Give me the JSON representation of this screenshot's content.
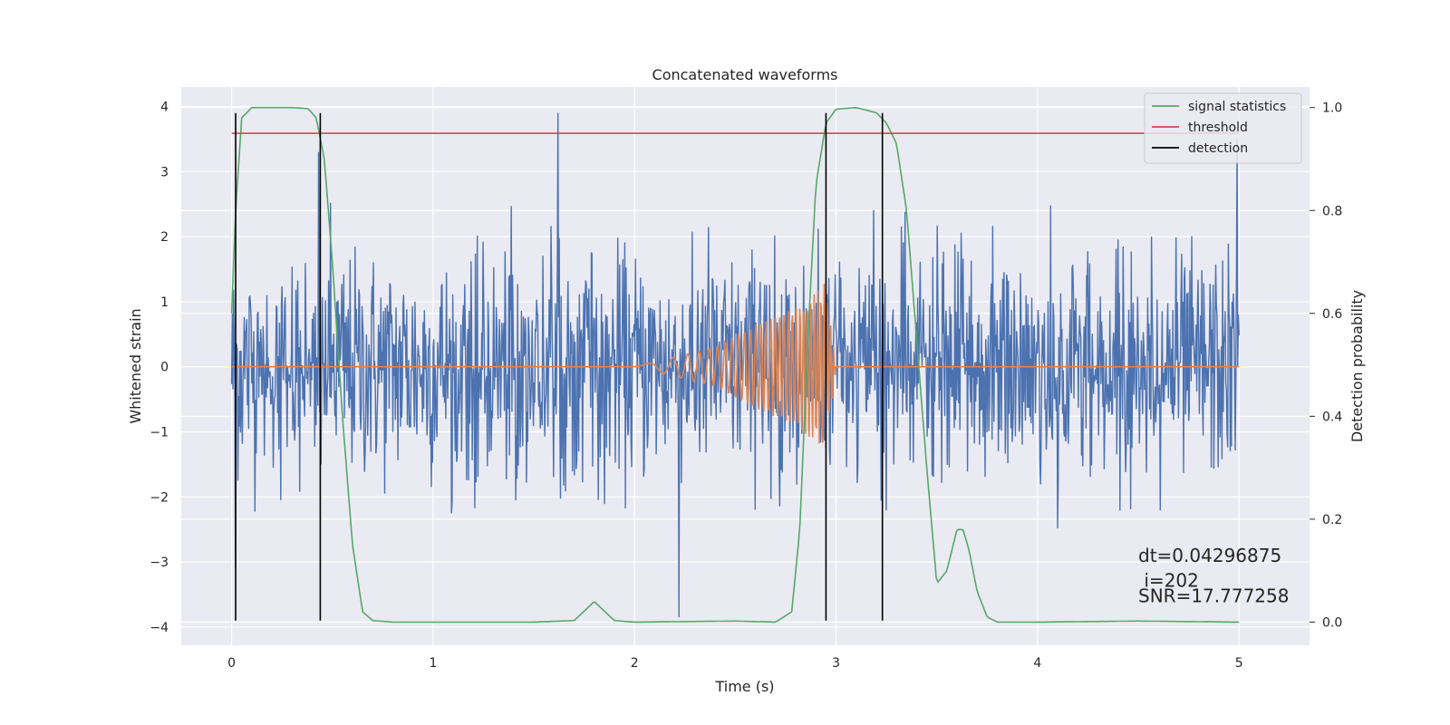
{
  "chart_data": {
    "type": "line",
    "title": "Concatenated waveforms",
    "xlabel": "Time (s)",
    "ylabel": "Whitened strain",
    "y2label": "Detection probability",
    "xlim": [
      -0.25,
      5.35
    ],
    "ylim": [
      -4.28,
      4.3
    ],
    "y2lim": [
      -0.045,
      1.04
    ],
    "xticks": [
      0,
      1,
      2,
      3,
      4,
      5
    ],
    "yticks": [
      -4,
      -3,
      -2,
      -1,
      0,
      1,
      2,
      3,
      4
    ],
    "y2ticks": [
      0.0,
      0.2,
      0.4,
      0.6,
      0.8,
      1.0
    ],
    "grid": true,
    "legend_position": "top-right",
    "series": [
      {
        "name": "",
        "axis": "left",
        "color": "#4c72b0",
        "kind": "noise",
        "x_range": [
          0,
          5
        ],
        "samples": 1600,
        "amplitude": 2.2,
        "spikes": [
          {
            "x": 1.62,
            "y": 3.9
          },
          {
            "x": 0.43,
            "y": 3.3
          },
          {
            "x": 4.99,
            "y": 3.5
          },
          {
            "x": 2.22,
            "y": -3.85
          },
          {
            "x": 0.02,
            "y": -3.1
          }
        ]
      },
      {
        "name": "",
        "axis": "left",
        "color": "#dd8452",
        "kind": "chirp",
        "x": [
          0,
          2.0,
          2.2,
          2.4,
          2.6,
          2.8,
          2.95,
          3.0,
          5.0
        ],
        "envelope": [
          0,
          0,
          0.15,
          0.3,
          0.65,
          0.9,
          1.3,
          0,
          0
        ]
      },
      {
        "name": "signal statistics",
        "axis": "right",
        "color": "#55a868",
        "x": [
          0,
          0.02,
          0.05,
          0.1,
          0.2,
          0.3,
          0.38,
          0.42,
          0.46,
          0.5,
          0.55,
          0.6,
          0.65,
          0.7,
          0.8,
          1.0,
          1.5,
          1.7,
          1.76,
          1.8,
          1.84,
          1.9,
          2.0,
          2.5,
          2.7,
          2.78,
          2.82,
          2.86,
          2.9,
          2.95,
          3.0,
          3.1,
          3.2,
          3.25,
          3.3,
          3.35,
          3.4,
          3.45,
          3.5,
          3.55,
          3.6,
          3.63,
          3.66,
          3.7,
          3.75,
          3.8,
          3.9,
          4.0,
          4.5,
          5.0
        ],
        "values": [
          0.6,
          0.8,
          0.98,
          1.0,
          1.0,
          1.0,
          0.998,
          0.98,
          0.9,
          0.7,
          0.4,
          0.15,
          0.02,
          0.003,
          0.0,
          0.0,
          0.0,
          0.003,
          0.025,
          0.04,
          0.025,
          0.003,
          0.0,
          0.002,
          0.0,
          0.02,
          0.18,
          0.55,
          0.85,
          0.97,
          0.997,
          1.0,
          0.99,
          0.97,
          0.93,
          0.8,
          0.55,
          0.3,
          0.075,
          0.1,
          0.18,
          0.18,
          0.14,
          0.06,
          0.01,
          0.0,
          0.0,
          0.0,
          0.002,
          0.0
        ]
      },
      {
        "name": "threshold",
        "axis": "right",
        "color": "#c44e52",
        "x": [
          0,
          5
        ],
        "values": [
          0.95,
          0.95
        ]
      }
    ],
    "detections": {
      "name": "detection",
      "color": "#000000",
      "x": [
        0.02,
        0.44,
        2.95,
        3.23
      ],
      "y_range": [
        -3.9,
        3.9
      ]
    },
    "annotations": [
      {
        "text": "dt=0.04296875",
        "x": 4.5,
        "y": -3.0
      },
      {
        "text": " i=202",
        "x": 4.5,
        "y": -3.38
      },
      {
        "text": "SNR=17.777258",
        "x": 4.5,
        "y": -3.62
      }
    ]
  }
}
